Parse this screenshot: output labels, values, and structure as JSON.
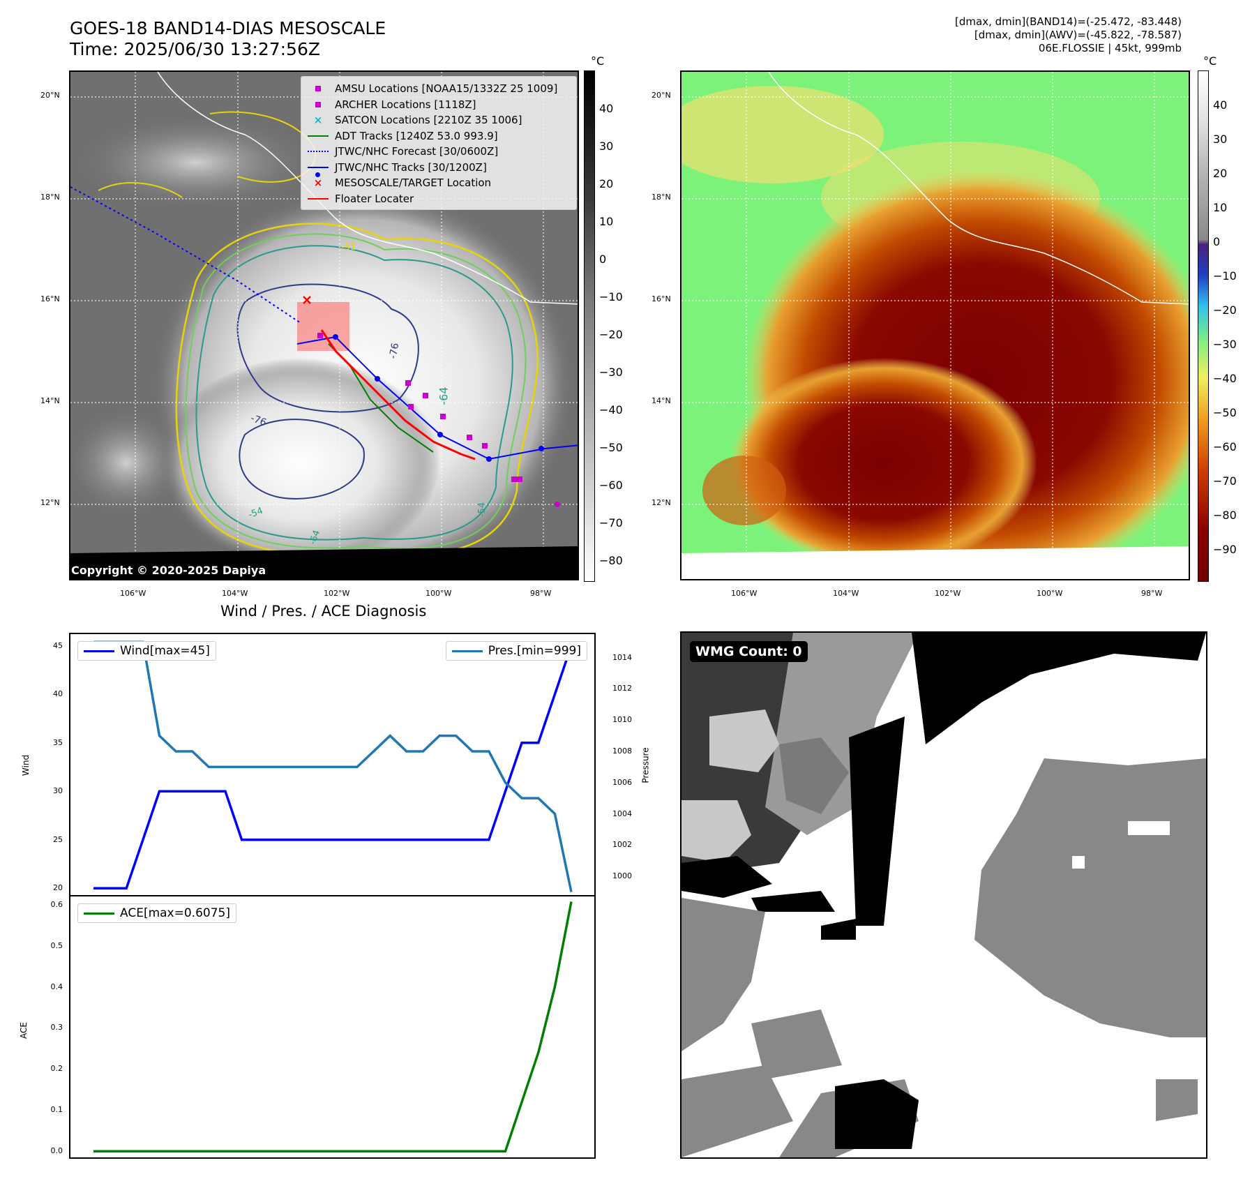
{
  "header": {
    "title_line1": "GOES-18 BAND14-DIAS MESOSCALE",
    "title_line2": "Time: 2025/06/30 13:27:56Z",
    "stats_line1": "[dmax, dmin](BAND14)=(-25.472, -83.448)",
    "stats_line2": "[dmax, dmin](AWV)=(-45.822, -78.587)",
    "stats_line3": "06E.FLOSSIE | 45kt, 999mb"
  },
  "map": {
    "lat_labels": [
      "20°N",
      "18°N",
      "16°N",
      "14°N",
      "12°N"
    ],
    "lon_labels": [
      "106°W",
      "104°W",
      "102°W",
      "100°W",
      "98°W"
    ],
    "copyright": "Copyright © 2020-2025 Dapiya",
    "contour_labels": [
      "-76",
      "-76",
      "-64",
      "-54",
      "-54",
      "-64",
      "-31"
    ],
    "legend": [
      {
        "label": "AMSU Locations [NOAA15/1332Z 25 1009]",
        "symbol": "square",
        "color": "#cc00cc"
      },
      {
        "label": "ARCHER Locations [1118Z]",
        "symbol": "square",
        "color": "#cc00cc"
      },
      {
        "label": "SATCON Locations [2210Z 35 1006]",
        "symbol": "x",
        "color": "#00bcd4"
      },
      {
        "label": "ADT Tracks [1240Z 53.0 993.9]",
        "symbol": "line",
        "color": "#008000"
      },
      {
        "label": "JTWC/NHC Forecast [30/0600Z]",
        "symbol": "dotted",
        "color": "#0000ff"
      },
      {
        "label": "JTWC/NHC Tracks [30/1200Z]",
        "symbol": "line-dot",
        "color": "#0000ff"
      },
      {
        "label": "MESOSCALE/TARGET Location",
        "symbol": "x",
        "color": "#ff0000"
      },
      {
        "label": "Floater Locater",
        "symbol": "line",
        "color": "#ff0000"
      }
    ]
  },
  "colorbar_left": {
    "unit": "°C",
    "ticks": [
      "40",
      "30",
      "20",
      "10",
      "0",
      "−10",
      "−20",
      "−30",
      "−40",
      "−50",
      "−60",
      "−70",
      "−80"
    ]
  },
  "colorbar_right": {
    "unit": "°C",
    "ticks": [
      "40",
      "30",
      "20",
      "10",
      "0",
      "−10",
      "−20",
      "−30",
      "−40",
      "−50",
      "−60",
      "−70",
      "−80",
      "−90"
    ]
  },
  "colors": {
    "wind": "#0000ff",
    "pressure": "#1f77b4",
    "ace": "#008000"
  },
  "chart_data": [
    {
      "type": "line",
      "title": "Wind / Pres. / ACE Diagnosis",
      "xlabel": "",
      "ylabel": "Wind",
      "ylabel_right": "Pressure",
      "x": [
        0,
        1,
        2,
        3,
        4,
        5,
        6,
        7,
        8,
        9,
        10,
        11,
        12,
        13,
        14,
        15,
        16,
        17,
        18,
        19,
        20,
        21,
        22,
        23,
        24,
        25,
        26,
        27,
        28,
        29
      ],
      "ylim": [
        19.3,
        46.2
      ],
      "ylim_right": [
        998.8,
        1015.5
      ],
      "yticks": [
        20,
        25,
        30,
        35,
        40,
        45
      ],
      "yticks_right": [
        1000,
        1002,
        1004,
        1006,
        1008,
        1010,
        1012,
        1014
      ],
      "series": [
        {
          "name": "Wind[max=45]",
          "axis": "left",
          "values": [
            20,
            20,
            20,
            25,
            30,
            30,
            30,
            30,
            30,
            25,
            25,
            25,
            25,
            25,
            25,
            25,
            25,
            25,
            25,
            25,
            25,
            25,
            25,
            25,
            25,
            30,
            35,
            35,
            40,
            45
          ]
        },
        {
          "name": "Pres.[min=999]",
          "axis": "right",
          "values": [
            1015,
            1015,
            1015,
            1015,
            1009,
            1008,
            1008,
            1007,
            1007,
            1007,
            1007,
            1007,
            1007,
            1007,
            1007,
            1007,
            1007,
            1008,
            1009,
            1008,
            1008,
            1009,
            1009,
            1008,
            1008,
            1006,
            1005,
            1005,
            1004,
            999
          ]
        }
      ]
    },
    {
      "type": "line",
      "title": "",
      "xlabel": "",
      "ylabel": "ACE",
      "x": [
        0,
        1,
        2,
        3,
        4,
        5,
        6,
        7,
        8,
        9,
        10,
        11,
        12,
        13,
        14,
        15,
        16,
        17,
        18,
        19,
        20,
        21,
        22,
        23,
        24,
        25,
        26,
        27,
        28,
        29
      ],
      "ylim": [
        -0.015,
        0.62
      ],
      "yticks": [
        "0.0",
        "0.1",
        "0.2",
        "0.3",
        "0.4",
        "0.5",
        "0.6"
      ],
      "series": [
        {
          "name": "ACE[max=0.6075]",
          "values": [
            0,
            0,
            0,
            0,
            0,
            0,
            0,
            0,
            0,
            0,
            0,
            0,
            0,
            0,
            0,
            0,
            0,
            0,
            0,
            0,
            0,
            0,
            0,
            0,
            0,
            0,
            0.12,
            0.24,
            0.4,
            0.6075
          ]
        }
      ]
    }
  ],
  "wmg": {
    "label": "WMG Count: 0"
  }
}
